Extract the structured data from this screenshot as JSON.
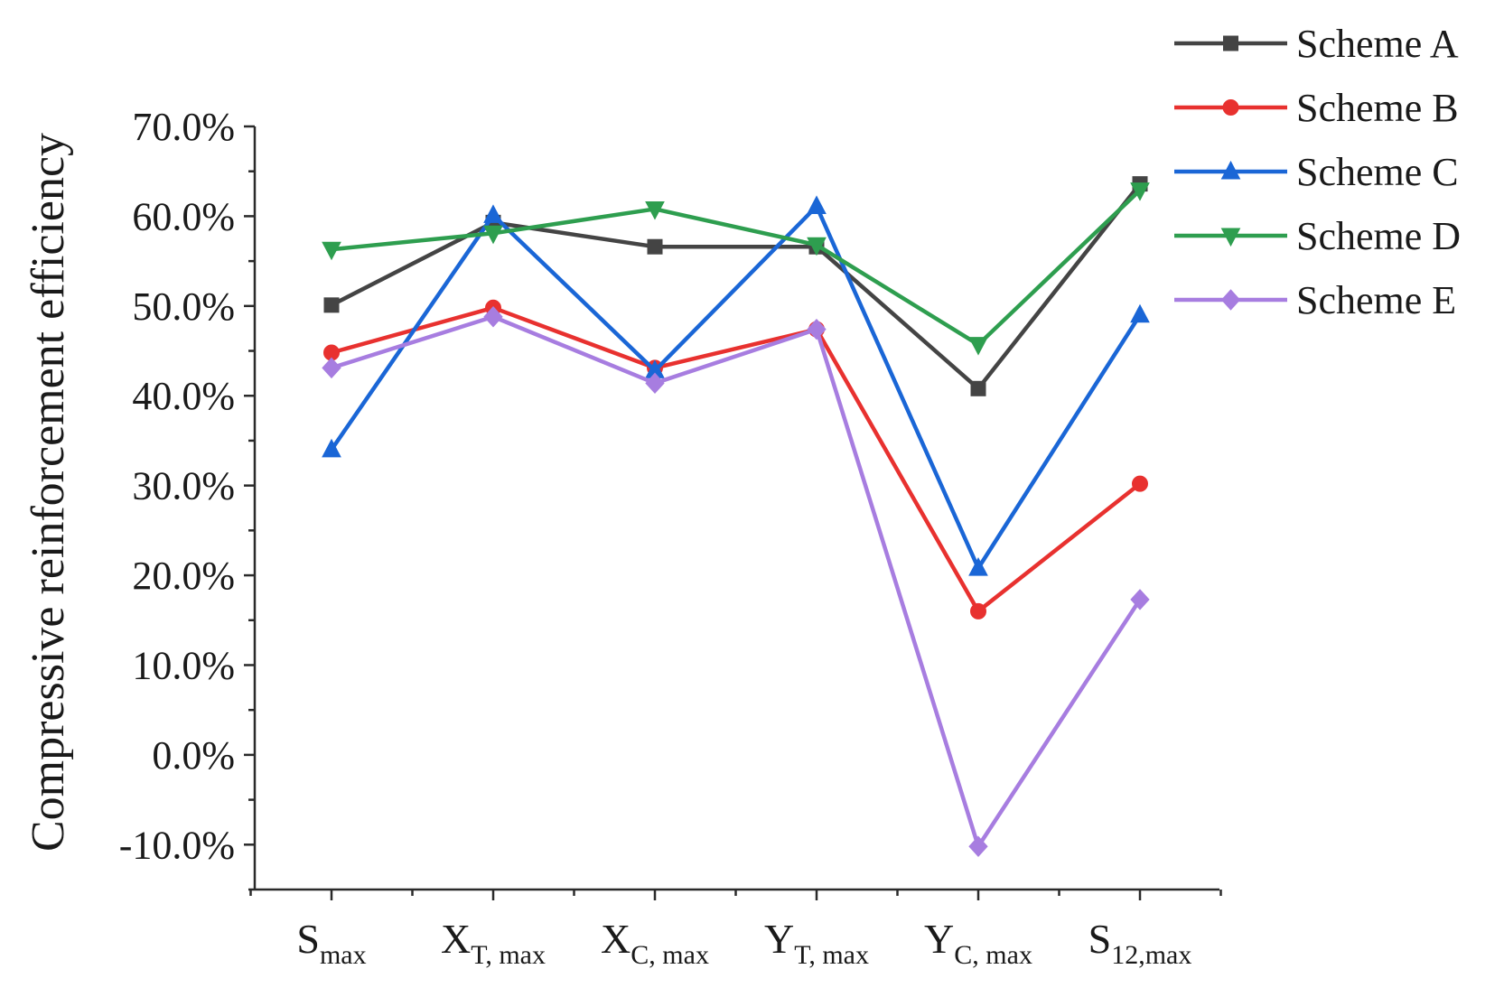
{
  "chart_data": {
    "type": "line",
    "title": "",
    "xlabel": "",
    "ylabel": "Compressive reinforcement efficiency",
    "ylim": [
      -15,
      70
    ],
    "yticks": [
      -10,
      0,
      10,
      20,
      30,
      40,
      50,
      60,
      70
    ],
    "ytick_labels": [
      "-10.0%",
      "0.0%",
      "10.0%",
      "20.0%",
      "30.0%",
      "40.0%",
      "50.0%",
      "60.0%",
      "70.0%"
    ],
    "categories": [
      {
        "main": "S",
        "sub": "max"
      },
      {
        "main": "X",
        "sub": "T, max"
      },
      {
        "main": "X",
        "sub": "C, max"
      },
      {
        "main": "Y",
        "sub": "T, max"
      },
      {
        "main": "Y",
        "sub": "C, max"
      },
      {
        "main": "S",
        "sub": "12,max"
      }
    ],
    "legend_position": "top-right",
    "grid": false,
    "series": [
      {
        "name": "Scheme A",
        "color": "#444444",
        "marker": "square",
        "values": [
          50.1,
          59.3,
          56.6,
          56.6,
          40.8,
          63.6
        ]
      },
      {
        "name": "Scheme B",
        "color": "#e8312f",
        "marker": "circle",
        "values": [
          44.8,
          49.8,
          43.1,
          47.4,
          16.0,
          30.2
        ]
      },
      {
        "name": "Scheme C",
        "color": "#1a66d6",
        "marker": "triangle-up",
        "values": [
          34.0,
          60.1,
          42.8,
          61.1,
          20.8,
          49.0
        ]
      },
      {
        "name": "Scheme D",
        "color": "#2e9e4f",
        "marker": "triangle-down",
        "values": [
          56.3,
          58.1,
          60.8,
          56.8,
          45.7,
          62.9
        ]
      },
      {
        "name": "Scheme E",
        "color": "#a77de0",
        "marker": "diamond",
        "values": [
          43.1,
          48.8,
          41.4,
          47.4,
          -10.2,
          17.3
        ]
      }
    ]
  }
}
